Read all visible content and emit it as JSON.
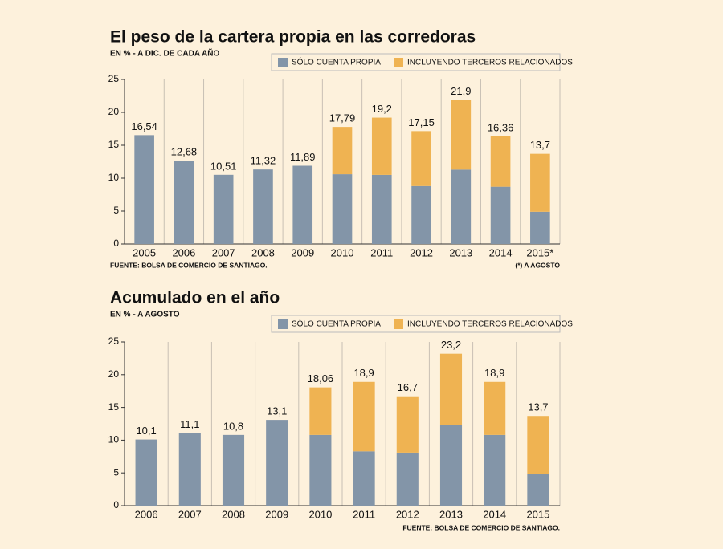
{
  "chart_data": [
    {
      "type": "stacked_bar",
      "title": "El peso de la cartera propia en las corredoras",
      "subtitle": "EN % - A DIC. DE CADA AÑO",
      "categories": [
        "2005",
        "2006",
        "2007",
        "2008",
        "2009",
        "2010",
        "2011",
        "2012",
        "2013",
        "2014",
        "2015*"
      ],
      "series": [
        {
          "name": "SÓLO CUENTA PROPIA",
          "color": "#8395a8",
          "values": [
            16.54,
            12.68,
            10.51,
            11.32,
            11.89,
            10.6,
            10.5,
            8.8,
            11.3,
            8.7,
            4.9
          ]
        },
        {
          "name": "INCLUYENDO TERCEROS RELACIONADOS",
          "color": "#efb352",
          "values": [
            null,
            null,
            null,
            null,
            null,
            7.19,
            8.7,
            8.35,
            10.6,
            7.66,
            8.8
          ]
        }
      ],
      "totals": [
        16.54,
        12.68,
        10.51,
        11.32,
        11.89,
        17.79,
        19.2,
        17.15,
        21.9,
        16.36,
        13.7
      ],
      "total_labels": [
        "16,54",
        "12,68",
        "10,51",
        "11,32",
        "11,89",
        "17,79",
        "19,2",
        "17,15",
        "21,9",
        "16,36",
        "13,7"
      ],
      "ylim": [
        0,
        25
      ],
      "yticks": [
        0,
        5,
        10,
        15,
        20,
        25
      ],
      "source": "FUENTE: BOLSA DE COMERCIO DE SANTIAGO.",
      "note": "(*) A AGOSTO"
    },
    {
      "type": "stacked_bar",
      "title": "Acumulado en el año",
      "subtitle": "EN % - A AGOSTO",
      "categories": [
        "2006",
        "2007",
        "2008",
        "2009",
        "2010",
        "2011",
        "2012",
        "2013",
        "2014",
        "2015"
      ],
      "series": [
        {
          "name": "SÓLO CUENTA PROPIA",
          "color": "#8395a8",
          "values": [
            10.1,
            11.1,
            10.8,
            13.1,
            10.8,
            8.3,
            8.1,
            12.3,
            10.8,
            4.9
          ]
        },
        {
          "name": "INCLUYENDO TERCEROS RELACIONADOS",
          "color": "#efb352",
          "values": [
            null,
            null,
            null,
            null,
            7.26,
            10.6,
            8.6,
            10.9,
            8.1,
            8.8
          ]
        }
      ],
      "totals": [
        10.1,
        11.1,
        10.8,
        13.1,
        18.06,
        18.9,
        16.7,
        23.2,
        18.9,
        13.7
      ],
      "total_labels": [
        "10,1",
        "11,1",
        "10,8",
        "13,1",
        "18,06",
        "18,9",
        "16,7",
        "23,2",
        "18,9",
        "13,7"
      ],
      "ylim": [
        0,
        25
      ],
      "yticks": [
        0,
        5,
        10,
        15,
        20,
        25
      ],
      "source": "FUENTE: BOLSA DE COMERCIO DE SANTIAGO."
    }
  ]
}
